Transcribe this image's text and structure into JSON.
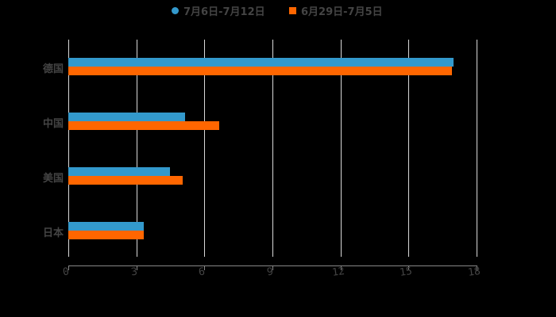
{
  "chart_data": {
    "type": "bar",
    "orientation": "horizontal",
    "title": "",
    "xlabel": "",
    "ylabel": "",
    "categories": [
      "德国",
      "中国",
      "美国",
      "日本"
    ],
    "series": [
      {
        "name": "7月6日-7月12日",
        "color": "#3399cc",
        "marker": "circle",
        "values": [
          17.0,
          5.15,
          4.48,
          3.33
        ]
      },
      {
        "name": "6月29日-7月5日",
        "color": "#ff6600",
        "marker": "square",
        "values": [
          16.9,
          6.65,
          5.04,
          3.33
        ]
      }
    ],
    "xlim": [
      0,
      18
    ],
    "x_ticks": [
      "0",
      "3",
      "6",
      "9",
      "12",
      "15",
      "18"
    ],
    "grid": true,
    "legend_position": "top"
  },
  "legend": {
    "items": [
      {
        "label": "7月6日-7月12日",
        "color": "#3399cc"
      },
      {
        "label": "6月29日-7月5日",
        "color": "#ff6600"
      }
    ]
  }
}
